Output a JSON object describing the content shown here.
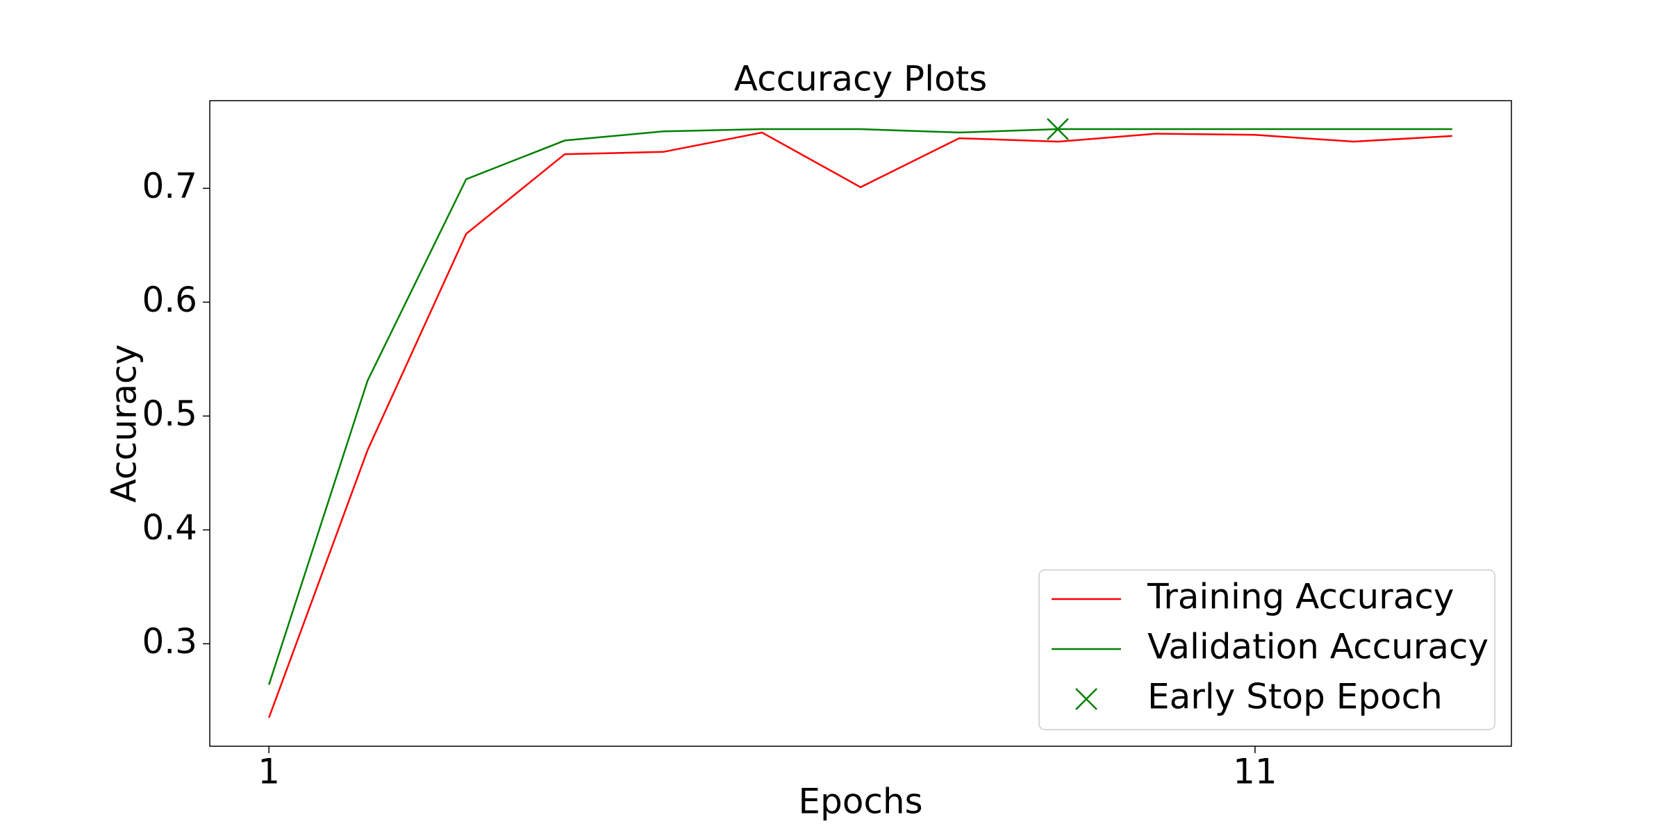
{
  "chart_data": {
    "type": "line",
    "title": "Accuracy Plots",
    "xlabel": "Epochs",
    "ylabel": "Accuracy",
    "x": [
      1,
      2,
      3,
      4,
      5,
      6,
      7,
      8,
      9,
      10,
      11,
      12,
      13
    ],
    "series": [
      {
        "name": "Training Accuracy",
        "color": "red",
        "values": [
          0.235,
          0.47,
          0.66,
          0.73,
          0.732,
          0.749,
          0.701,
          0.744,
          0.741,
          0.748,
          0.747,
          0.741,
          0.746
        ]
      },
      {
        "name": "Validation Accuracy",
        "color": "green",
        "values": [
          0.264,
          0.531,
          0.708,
          0.742,
          0.75,
          0.752,
          0.752,
          0.749,
          0.752,
          0.752,
          0.752,
          0.752,
          0.752
        ]
      }
    ],
    "markers": [
      {
        "name": "Early Stop Epoch",
        "color": "green",
        "x": 9,
        "y": 0.752
      }
    ],
    "xlim": [
      0.4,
      13.6
    ],
    "ylim": [
      0.21,
      0.777
    ],
    "xticks": [
      1,
      11
    ],
    "yticks": [
      0.3,
      0.4,
      0.5,
      0.6,
      0.7
    ],
    "legend": "lower right",
    "grid": false
  }
}
